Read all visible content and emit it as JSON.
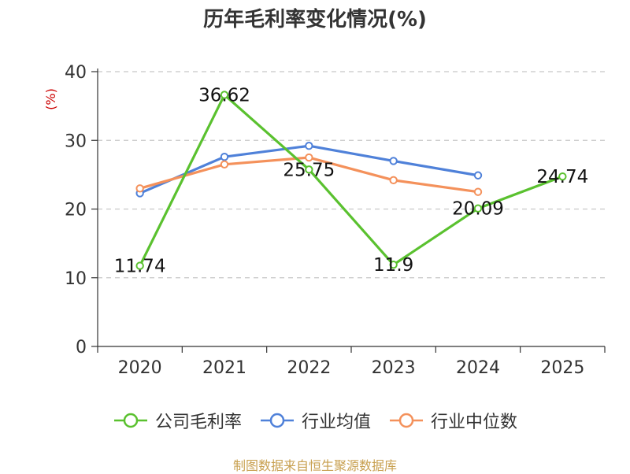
{
  "title": "历年毛利率变化情况(%)",
  "source": "制图数据来自恒生聚源数据库",
  "colors": {
    "company": "#5ac12f",
    "industry_avg": "#4f81d9",
    "industry_median": "#f4915b",
    "ylabel": "#cc0000"
  },
  "chart_data": {
    "type": "line",
    "title": "历年毛利率变化情况(%)",
    "ylabel": "(%)",
    "xlabel": "",
    "categories": [
      "2020",
      "2021",
      "2022",
      "2023",
      "2024",
      "2025"
    ],
    "ylim": [
      0,
      40
    ],
    "yticks": [
      0,
      10,
      20,
      30,
      40
    ],
    "grid": true,
    "legend_position": "bottom",
    "series": [
      {
        "name": "公司毛利率",
        "color": "#5ac12f",
        "values": [
          11.74,
          36.62,
          25.75,
          11.9,
          20.09,
          24.74
        ],
        "labels": [
          "11.74",
          "36.62",
          "25.75",
          "11.9",
          "20.09",
          "24.74"
        ]
      },
      {
        "name": "行业均值",
        "color": "#4f81d9",
        "values": [
          22.3,
          27.6,
          29.2,
          27.0,
          24.9,
          null
        ]
      },
      {
        "name": "行业中位数",
        "color": "#f4915b",
        "values": [
          23.0,
          26.5,
          27.5,
          24.2,
          22.5,
          null
        ]
      }
    ]
  }
}
